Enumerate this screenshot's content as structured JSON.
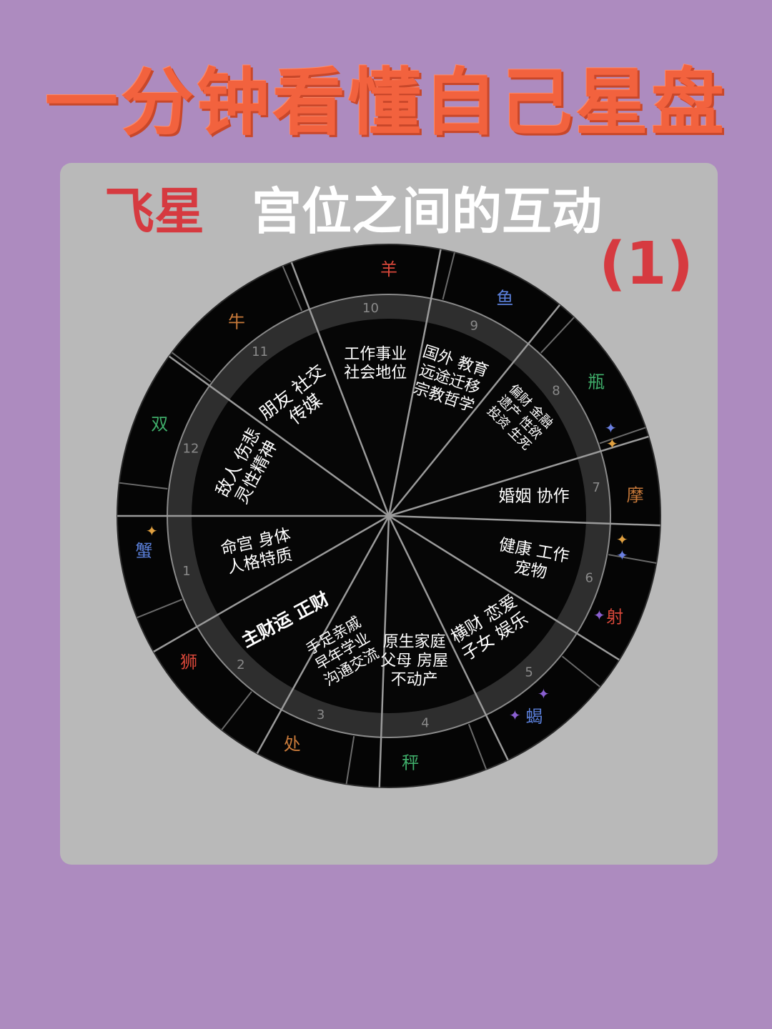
{
  "title": "一分钟看懂自己星盘",
  "subtitle": {
    "label": "飞星",
    "text": "宫位之间的互动",
    "number": "(1)"
  },
  "houses": [
    {
      "num": "1",
      "lines": [
        "命宫 身体",
        "人格特质"
      ],
      "angle": 195
    },
    {
      "num": "2",
      "lines": [
        "主财运 正财"
      ],
      "angle": 225
    },
    {
      "num": "3",
      "lines": [
        "手足亲戚",
        "早年学业",
        "沟通交流"
      ],
      "angle": 251
    },
    {
      "num": "4",
      "lines": [
        "原生家庭",
        "父母 房屋",
        "不动产"
      ],
      "angle": 280
    },
    {
      "num": "5",
      "lines": [
        "横财 恋爱",
        "子女 娱乐"
      ],
      "angle": 312
    },
    {
      "num": "6",
      "lines": [
        "健康 工作",
        "宠物"
      ],
      "angle": 343
    },
    {
      "num": "7",
      "lines": [
        "婚姻 协作"
      ],
      "angle": 8
    },
    {
      "num": "8",
      "lines": [
        "偏财 金融",
        "遗产 性欲",
        "投资 生死"
      ],
      "angle": 37
    },
    {
      "num": "9",
      "lines": [
        "国外 教育",
        "远途迁移",
        "宗教哲学"
      ],
      "angle": 66
    },
    {
      "num": "10",
      "lines": [
        "工作事业",
        "社会地位"
      ],
      "angle": 95
    },
    {
      "num": "11",
      "lines": [
        "朋友 社交",
        "传媒"
      ],
      "angle": 128
    },
    {
      "num": "12",
      "lines": [
        "敌人 伤悲",
        "灵性精神"
      ],
      "angle": 161
    }
  ],
  "signs": [
    {
      "name": "羊",
      "angle": 90,
      "color": "#d9483a"
    },
    {
      "name": "鱼",
      "angle": 62,
      "color": "#5a7fd9"
    },
    {
      "name": "瓶",
      "angle": 33,
      "color": "#3fae6a"
    },
    {
      "name": "摩",
      "angle": 5,
      "color": "#c97a3a"
    },
    {
      "name": "射",
      "angle": 336,
      "color": "#d9483a"
    },
    {
      "name": "蝎",
      "angle": 306,
      "color": "#5a7fd9"
    },
    {
      "name": "秤",
      "angle": 275,
      "color": "#3fae6a"
    },
    {
      "name": "处",
      "angle": 247,
      "color": "#c97a3a"
    },
    {
      "name": "狮",
      "angle": 216,
      "color": "#d9483a"
    },
    {
      "name": "蟹",
      "angle": 188,
      "color": "#5a7fd9"
    },
    {
      "name": "双",
      "angle": 158,
      "color": "#3fae6a"
    },
    {
      "name": "牛",
      "angle": 128,
      "color": "#c97a3a"
    }
  ],
  "house_number_color": "#8a8a8a",
  "accent_colors": {
    "title": "#f2623e",
    "highlight": "#d63a40",
    "background": "#ad8bbf",
    "panel": "#b9b9b9",
    "wheel": "#050505"
  }
}
